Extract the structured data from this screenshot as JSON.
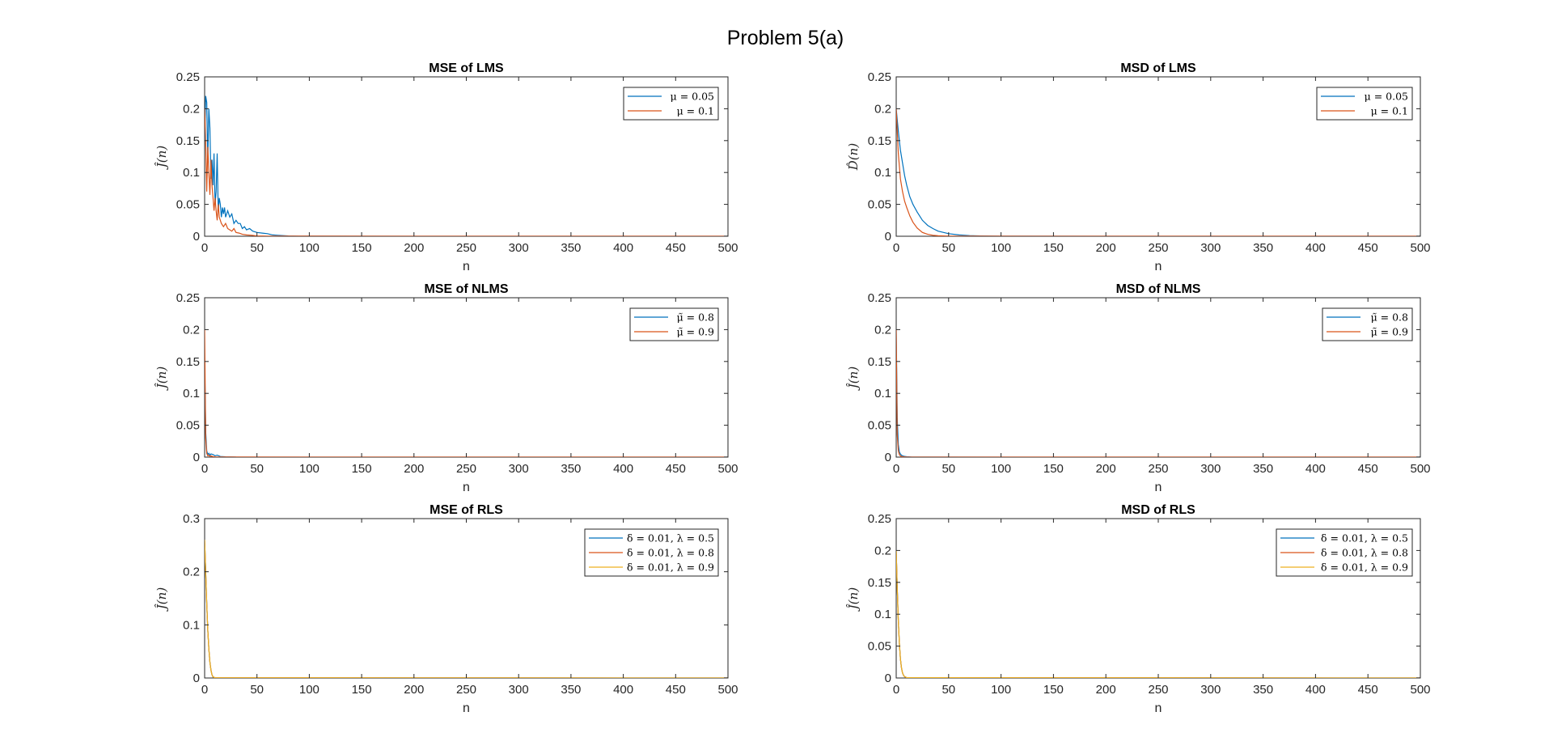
{
  "figure": {
    "title": "Problem 5(a)"
  },
  "chart_data": [
    {
      "id": "mse_lms",
      "type": "line",
      "title": "MSE of LMS",
      "xlabel": "n",
      "ylabel": "Ĵ(n)",
      "xlim": [
        0,
        500
      ],
      "ylim": [
        0,
        0.25
      ],
      "xticks": [
        "0",
        "50",
        "100",
        "150",
        "200",
        "250",
        "300",
        "350",
        "400",
        "450",
        "500"
      ],
      "yticks": [
        "0",
        "0.05",
        "0.1",
        "0.15",
        "0.2",
        "0.25"
      ],
      "grid": false,
      "legend_position": "top-right",
      "series": [
        {
          "name": "μ = 0.05",
          "color": "#0072BD",
          "x": [
            0,
            1,
            2,
            3,
            4,
            5,
            6,
            7,
            8,
            9,
            10,
            11,
            12,
            13,
            14,
            15,
            16,
            17,
            18,
            19,
            20,
            22,
            24,
            26,
            28,
            30,
            32,
            34,
            36,
            38,
            40,
            43,
            46,
            50,
            55,
            60,
            65,
            70,
            75,
            80,
            90,
            100,
            500
          ],
          "y": [
            0.15,
            0.22,
            0.21,
            0.12,
            0.2,
            0.17,
            0.09,
            0.12,
            0.08,
            0.13,
            0.05,
            0.07,
            0.13,
            0.04,
            0.06,
            0.05,
            0.03,
            0.045,
            0.035,
            0.045,
            0.03,
            0.04,
            0.03,
            0.035,
            0.02,
            0.025,
            0.02,
            0.02,
            0.012,
            0.015,
            0.01,
            0.012,
            0.008,
            0.006,
            0.005,
            0.004,
            0.002,
            0.0015,
            0.001,
            0.0005,
            0.0003,
            0.0001,
            0
          ]
        },
        {
          "name": "μ = 0.1",
          "color": "#D95319",
          "x": [
            0,
            1,
            2,
            3,
            4,
            5,
            6,
            7,
            8,
            9,
            10,
            11,
            12,
            13,
            14,
            15,
            16,
            18,
            20,
            22,
            24,
            26,
            28,
            30,
            33,
            36,
            40,
            45,
            50,
            60,
            500
          ],
          "y": [
            0.2,
            0.15,
            0.07,
            0.14,
            0.1,
            0.065,
            0.12,
            0.08,
            0.06,
            0.04,
            0.06,
            0.04,
            0.025,
            0.05,
            0.03,
            0.025,
            0.02,
            0.015,
            0.02,
            0.012,
            0.01,
            0.008,
            0.012,
            0.006,
            0.005,
            0.003,
            0.002,
            0.0015,
            0.0005,
            0.0001,
            0
          ]
        }
      ]
    },
    {
      "id": "msd_lms",
      "type": "line",
      "title": "MSD of LMS",
      "xlabel": "n",
      "ylabel": "D̂(n)",
      "xlim": [
        0,
        500
      ],
      "ylim": [
        0,
        0.25
      ],
      "xticks": [
        "0",
        "50",
        "100",
        "150",
        "200",
        "250",
        "300",
        "350",
        "400",
        "450",
        "500"
      ],
      "yticks": [
        "0",
        "0.05",
        "0.1",
        "0.15",
        "0.2",
        "0.25"
      ],
      "grid": false,
      "legend_position": "top-right",
      "series": [
        {
          "name": "μ = 0.05",
          "color": "#0072BD",
          "x": [
            0,
            2,
            4,
            6,
            8,
            10,
            13,
            16,
            20,
            25,
            30,
            35,
            40,
            50,
            60,
            70,
            80,
            100,
            500
          ],
          "y": [
            0.2,
            0.165,
            0.135,
            0.115,
            0.095,
            0.08,
            0.062,
            0.05,
            0.038,
            0.025,
            0.017,
            0.012,
            0.008,
            0.004,
            0.002,
            0.001,
            0.0005,
            0.0001,
            0
          ]
        },
        {
          "name": "μ = 0.1",
          "color": "#D95319",
          "x": [
            0,
            2,
            4,
            6,
            8,
            10,
            13,
            16,
            20,
            25,
            30,
            35,
            40,
            50,
            70,
            500
          ],
          "y": [
            0.2,
            0.13,
            0.09,
            0.07,
            0.055,
            0.045,
            0.032,
            0.022,
            0.013,
            0.006,
            0.003,
            0.0015,
            0.0008,
            0.0002,
            0.0001,
            0
          ]
        }
      ]
    },
    {
      "id": "mse_nlms",
      "type": "line",
      "title": "MSE of NLMS",
      "xlabel": "n",
      "ylabel": "Ĵ(n)",
      "xlim": [
        0,
        500
      ],
      "ylim": [
        0,
        0.25
      ],
      "xticks": [
        "0",
        "50",
        "100",
        "150",
        "200",
        "250",
        "300",
        "350",
        "400",
        "450",
        "500"
      ],
      "yticks": [
        "0",
        "0.05",
        "0.1",
        "0.15",
        "0.2",
        "0.25"
      ],
      "grid": false,
      "legend_position": "top-right",
      "series": [
        {
          "name": "μ̃ = 0.8",
          "color": "#0072BD",
          "x": [
            0,
            1,
            2,
            3,
            4,
            5,
            6,
            8,
            10,
            12,
            15,
            20,
            30,
            500
          ],
          "y": [
            0.15,
            0.04,
            0.01,
            0.004,
            0.006,
            0.003,
            0.005,
            0.004,
            0.002,
            0.003,
            0.001,
            0.0005,
            0.0001,
            0
          ]
        },
        {
          "name": "μ̃ = 0.9",
          "color": "#D95319",
          "x": [
            0,
            1,
            2,
            3,
            4,
            5,
            6,
            8,
            10,
            15,
            20,
            500
          ],
          "y": [
            0.2,
            0.03,
            0.006,
            0.002,
            0.003,
            0.001,
            0.002,
            0.0008,
            0.0004,
            0.0002,
            0.0001,
            0
          ]
        }
      ]
    },
    {
      "id": "msd_nlms",
      "type": "line",
      "title": "MSD of NLMS",
      "xlabel": "n",
      "ylabel": "Ĵ(n)",
      "xlim": [
        0,
        500
      ],
      "ylim": [
        0,
        0.25
      ],
      "xticks": [
        "0",
        "50",
        "100",
        "150",
        "200",
        "250",
        "300",
        "350",
        "400",
        "450",
        "500"
      ],
      "yticks": [
        "0",
        "0.05",
        "0.1",
        "0.15",
        "0.2",
        "0.25"
      ],
      "grid": false,
      "legend_position": "top-right",
      "series": [
        {
          "name": "μ̃ = 0.8",
          "color": "#0072BD",
          "x": [
            0,
            1,
            2,
            3,
            4,
            5,
            6,
            8,
            10,
            15,
            20,
            500
          ],
          "y": [
            0.2,
            0.06,
            0.02,
            0.008,
            0.005,
            0.003,
            0.002,
            0.0012,
            0.0006,
            0.0002,
            0.0001,
            0
          ]
        },
        {
          "name": "μ̃ = 0.9",
          "color": "#D95319",
          "x": [
            0,
            1,
            2,
            3,
            4,
            5,
            6,
            8,
            10,
            15,
            500
          ],
          "y": [
            0.2,
            0.035,
            0.01,
            0.004,
            0.002,
            0.001,
            0.0006,
            0.0003,
            0.0001,
            5e-05,
            0
          ]
        }
      ]
    },
    {
      "id": "mse_rls",
      "type": "line",
      "title": "MSE of RLS",
      "xlabel": "n",
      "ylabel": "Ĵ(n)",
      "xlim": [
        0,
        500
      ],
      "ylim": [
        0,
        0.3
      ],
      "xticks": [
        "0",
        "50",
        "100",
        "150",
        "200",
        "250",
        "300",
        "350",
        "400",
        "450",
        "500"
      ],
      "yticks": [
        "0",
        "0.1",
        "0.2",
        "0.3"
      ],
      "grid": false,
      "legend_position": "top-right",
      "series": [
        {
          "name": "δ = 0.01, λ = 0.5",
          "color": "#0072BD",
          "x": [
            0,
            1,
            2,
            3,
            4,
            5,
            6,
            7,
            8,
            10,
            500
          ],
          "y": [
            0.26,
            0.2,
            0.14,
            0.09,
            0.055,
            0.03,
            0.015,
            0.006,
            0.002,
            0.0005,
            0
          ]
        },
        {
          "name": "δ = 0.01, λ = 0.8",
          "color": "#D95319",
          "x": [
            0,
            1,
            2,
            3,
            4,
            5,
            6,
            7,
            8,
            10,
            500
          ],
          "y": [
            0.26,
            0.2,
            0.14,
            0.09,
            0.055,
            0.03,
            0.015,
            0.006,
            0.002,
            0.0005,
            0
          ]
        },
        {
          "name": "δ = 0.01, λ = 0.9",
          "color": "#EDB120",
          "x": [
            0,
            1,
            2,
            3,
            4,
            5,
            6,
            7,
            8,
            10,
            500
          ],
          "y": [
            0.26,
            0.2,
            0.14,
            0.09,
            0.055,
            0.03,
            0.015,
            0.006,
            0.002,
            0.0005,
            0
          ]
        }
      ]
    },
    {
      "id": "msd_rls",
      "type": "line",
      "title": "MSD of RLS",
      "xlabel": "n",
      "ylabel": "Ĵ(n)",
      "xlim": [
        0,
        500
      ],
      "ylim": [
        0,
        0.25
      ],
      "xticks": [
        "0",
        "50",
        "100",
        "150",
        "200",
        "250",
        "300",
        "350",
        "400",
        "450",
        "500"
      ],
      "yticks": [
        "0",
        "0.05",
        "0.1",
        "0.15",
        "0.2",
        "0.25"
      ],
      "grid": false,
      "legend_position": "top-right",
      "series": [
        {
          "name": "δ = 0.01, λ = 0.5",
          "color": "#0072BD",
          "x": [
            0,
            1,
            2,
            3,
            4,
            5,
            6,
            7,
            8,
            10,
            500
          ],
          "y": [
            0.2,
            0.14,
            0.09,
            0.055,
            0.03,
            0.016,
            0.008,
            0.004,
            0.002,
            0.0005,
            0
          ]
        },
        {
          "name": "δ = 0.01, λ = 0.8",
          "color": "#D95319",
          "x": [
            0,
            1,
            2,
            3,
            4,
            5,
            6,
            7,
            8,
            10,
            500
          ],
          "y": [
            0.2,
            0.14,
            0.09,
            0.055,
            0.03,
            0.016,
            0.008,
            0.004,
            0.002,
            0.0005,
            0
          ]
        },
        {
          "name": "δ = 0.01, λ = 0.9",
          "color": "#EDB120",
          "x": [
            0,
            1,
            2,
            3,
            4,
            5,
            6,
            7,
            8,
            10,
            500
          ],
          "y": [
            0.2,
            0.14,
            0.09,
            0.055,
            0.03,
            0.016,
            0.008,
            0.004,
            0.002,
            0.0005,
            0
          ]
        }
      ]
    }
  ]
}
